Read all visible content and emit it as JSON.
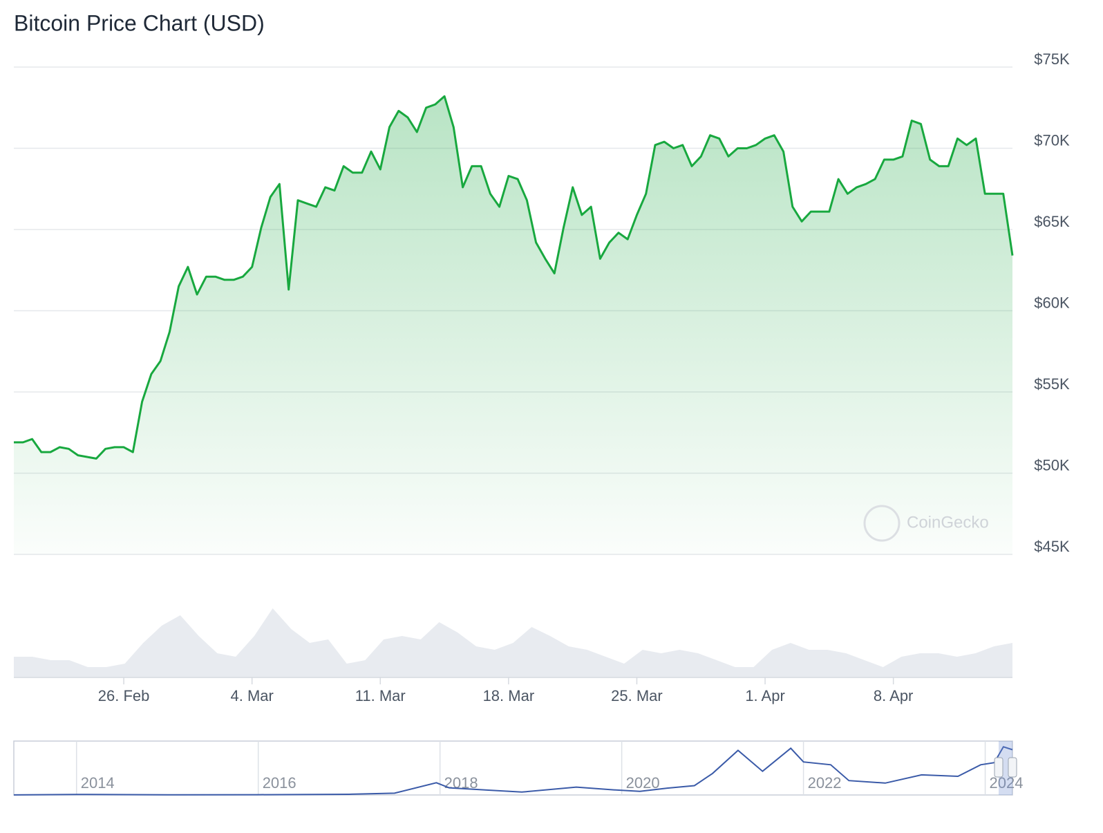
{
  "chart_data": [
    {
      "type": "area-line",
      "title": "Bitcoin Price Chart (USD)",
      "watermark": "CoinGecko",
      "color": "#18a83f",
      "categories": [
        null,
        null,
        null,
        null,
        null,
        null,
        null,
        null,
        null,
        null,
        null,
        null,
        "26. Feb",
        null,
        null,
        null,
        null,
        null,
        null,
        null,
        null,
        null,
        null,
        null,
        null,
        null,
        "4. Mar",
        null,
        null,
        null,
        null,
        null,
        null,
        null,
        null,
        null,
        null,
        null,
        null,
        null,
        "11. Mar",
        null,
        null,
        null,
        null,
        null,
        null,
        null,
        null,
        null,
        null,
        null,
        null,
        null,
        "18. Mar",
        null,
        null,
        null,
        null,
        null,
        null,
        null,
        null,
        null,
        null,
        null,
        null,
        null,
        "25. Mar",
        null,
        null,
        null,
        null,
        null,
        null,
        null,
        null,
        null,
        null,
        null,
        null,
        null,
        "1. Apr",
        null,
        null,
        null,
        null,
        null,
        null,
        null,
        null,
        null,
        null,
        null,
        null,
        null,
        "8. Apr",
        null,
        null,
        null,
        null,
        null,
        null,
        null,
        null,
        null,
        null,
        null,
        null,
        null
      ],
      "values": [
        51900,
        51900,
        52100,
        51300,
        51300,
        51600,
        51500,
        51100,
        51000,
        50900,
        51500,
        51600,
        51600,
        51300,
        54400,
        56100,
        56900,
        58700,
        61500,
        62700,
        61000,
        62100,
        62100,
        61900,
        61900,
        62100,
        62700,
        65100,
        67000,
        67800,
        61300,
        66800,
        66600,
        66400,
        67600,
        67400,
        68900,
        68500,
        68500,
        69800,
        68700,
        71300,
        72300,
        71900,
        71000,
        72500,
        72700,
        73200,
        71300,
        67600,
        68900,
        68900,
        67200,
        66400,
        68300,
        68100,
        66800,
        64200,
        63200,
        62300,
        65100,
        67600,
        65900,
        66400,
        63200,
        64200,
        64800,
        64400,
        65900,
        67200,
        70200,
        70400,
        70000,
        70200,
        68900,
        69500,
        70800,
        70600,
        69500,
        70000,
        70000,
        70200,
        70600,
        70800,
        69800,
        66400,
        65500,
        66100,
        66100,
        66100,
        68100,
        67200,
        67600,
        67800,
        68100,
        69300,
        69300,
        69500,
        71700,
        71500,
        69300,
        68900,
        68900,
        70600,
        70200,
        70600,
        67200,
        67200,
        67200,
        63400
      ],
      "ylim": [
        45000,
        75000
      ],
      "yticks": [
        {
          "value": 45000,
          "label": "$45K"
        },
        {
          "value": 50000,
          "label": "$50K"
        },
        {
          "value": 55000,
          "label": "$55K"
        },
        {
          "value": 60000,
          "label": "$60K"
        },
        {
          "value": 65000,
          "label": "$65K"
        },
        {
          "value": 70000,
          "label": "$70K"
        },
        {
          "value": 75000,
          "label": "$75K"
        }
      ],
      "grid": true,
      "volume": {
        "color": "#e8ebf0",
        "values": [
          30,
          30,
          25,
          25,
          15,
          15,
          20,
          50,
          75,
          90,
          60,
          35,
          30,
          60,
          100,
          70,
          50,
          55,
          20,
          25,
          55,
          60,
          55,
          80,
          65,
          45,
          40,
          50,
          73,
          60,
          45,
          40,
          30,
          20,
          40,
          35,
          40,
          35,
          25,
          15,
          15,
          40,
          50,
          40,
          40,
          35,
          25,
          15,
          30,
          35,
          35,
          30,
          35,
          45,
          50
        ]
      }
    },
    {
      "type": "navigator",
      "color": "#3a5aa8",
      "x": [
        2013.31,
        2014,
        2015,
        2016,
        2017,
        2017.5,
        2017.96,
        2018.1,
        2018.5,
        2018.9,
        2019.5,
        2019.9,
        2020.2,
        2020.5,
        2020.8,
        2021.0,
        2021.28,
        2021.55,
        2021.86,
        2022.0,
        2022.3,
        2022.5,
        2022.9,
        2023.3,
        2023.7,
        2023.95,
        2024.1,
        2024.2,
        2024.3
      ],
      "values": [
        100,
        800,
        300,
        430,
        1000,
        2500,
        17000,
        10000,
        7000,
        4000,
        11000,
        7200,
        5000,
        9500,
        13000,
        30000,
        62000,
        33000,
        65000,
        46000,
        42000,
        20000,
        16500,
        28000,
        26000,
        42000,
        45000,
        67000,
        63000
      ],
      "xlim": [
        2013.31,
        2024.3
      ],
      "ylim": [
        0,
        75000
      ],
      "xticks": [
        2014,
        2016,
        2018,
        2020,
        2022,
        2024
      ]
    }
  ]
}
